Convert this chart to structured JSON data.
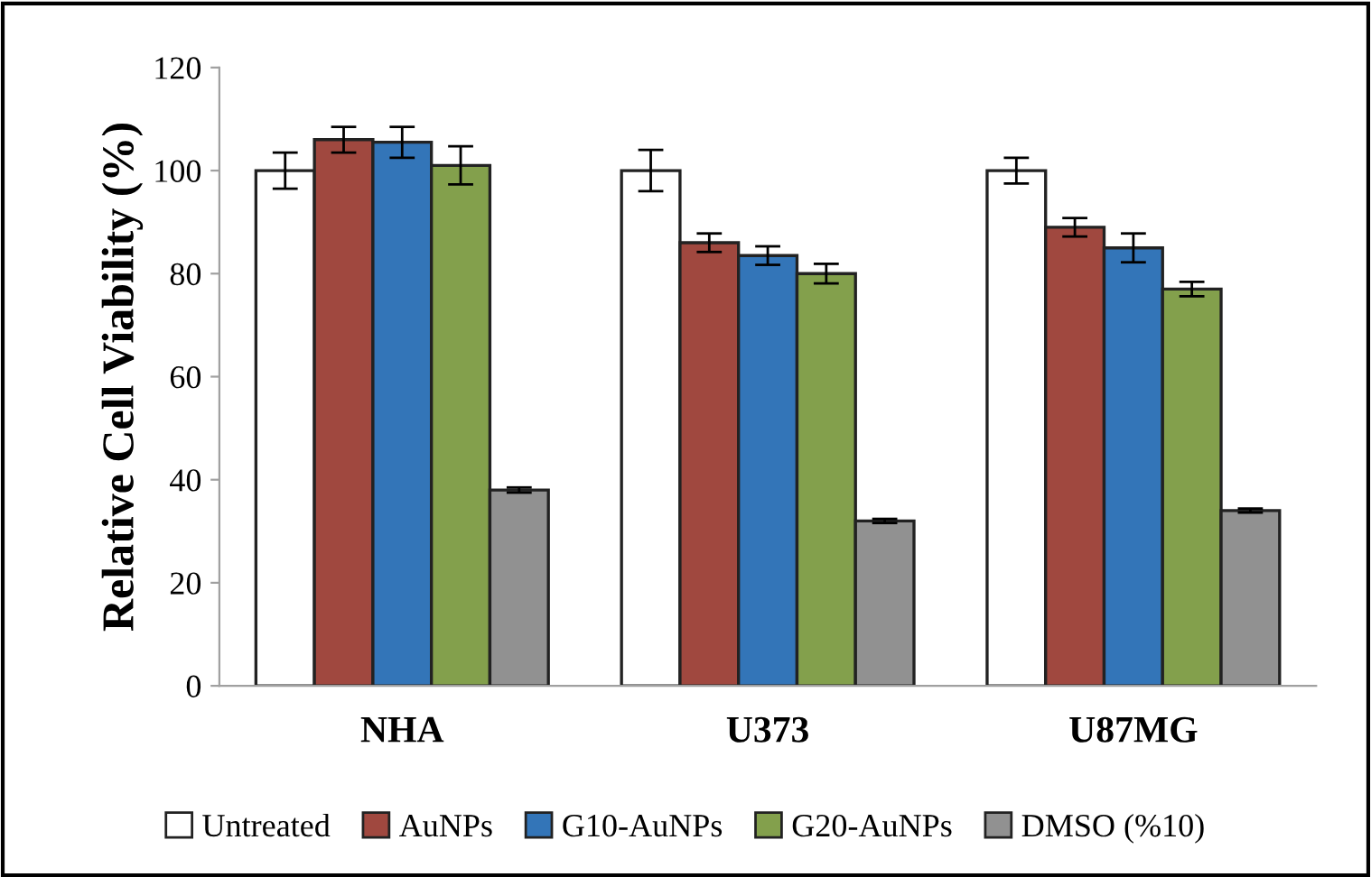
{
  "chart_data": {
    "type": "bar",
    "ylabel": "Relative Cell Viability (%)",
    "categories": [
      "NHA",
      "U373",
      "U87MG"
    ],
    "series": [
      {
        "name": "Untreated",
        "color": "#ffffff",
        "values": [
          100,
          100,
          100
        ],
        "errors": [
          3.5,
          4,
          2.5
        ]
      },
      {
        "name": "AuNPs",
        "color": "#a0483f",
        "values": [
          106,
          86,
          89
        ],
        "errors": [
          2.5,
          1.8,
          1.8
        ]
      },
      {
        "name": "G10-AuNPs",
        "color": "#3375b8",
        "values": [
          105.5,
          83.5,
          85
        ],
        "errors": [
          3,
          1.8,
          2.8
        ]
      },
      {
        "name": "G20-AuNPs",
        "color": "#83a04c",
        "values": [
          101,
          80,
          77
        ],
        "errors": [
          3.7,
          1.9,
          1.4
        ]
      },
      {
        "name": "DMSO (%10)",
        "color": "#919191",
        "values": [
          38,
          32,
          34
        ],
        "errors": [
          0.5,
          0.4,
          0.4
        ]
      }
    ],
    "ylim": [
      0,
      120
    ],
    "yticks": [
      0,
      20,
      40,
      60,
      80,
      100,
      120
    ],
    "grid": false,
    "legend": "bottom"
  }
}
